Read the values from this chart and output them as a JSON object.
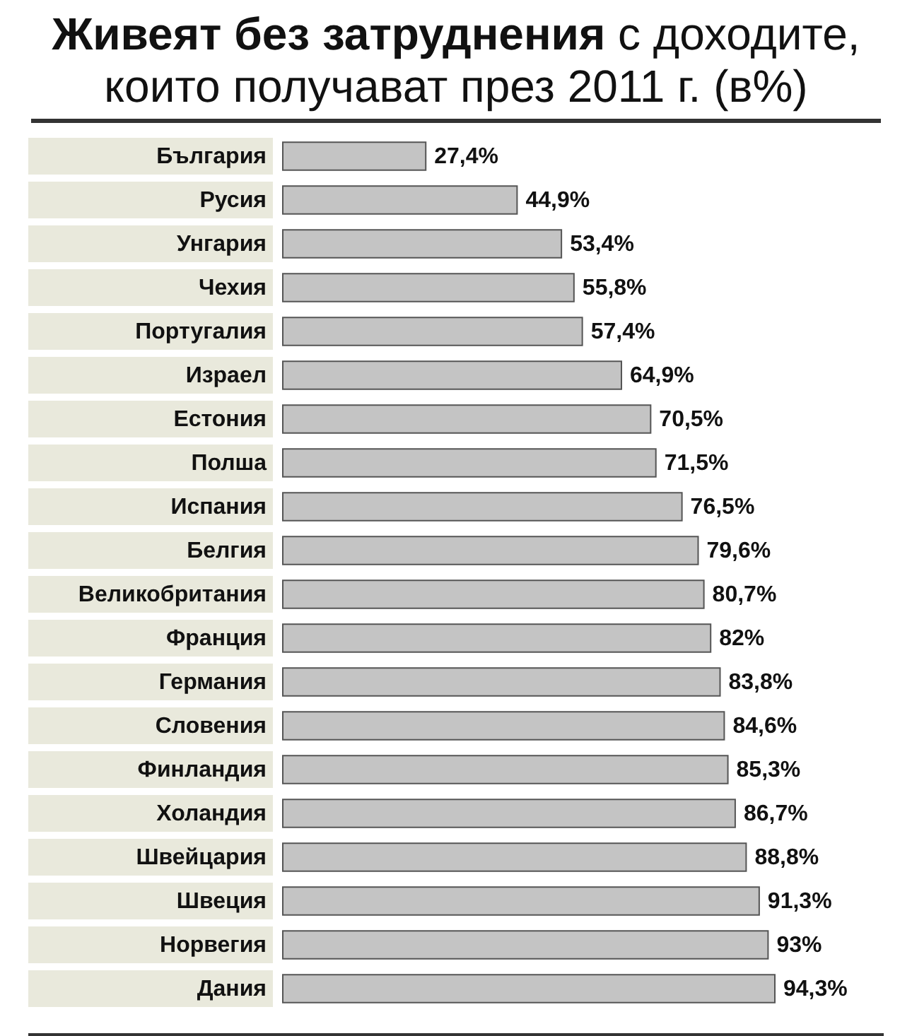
{
  "chart_data": {
    "type": "bar",
    "orientation": "horizontal",
    "title": "Живеят без затруднения с доходите, които получават през 2011 г. (в%)",
    "categories": [
      "България",
      "Русия",
      "Унгария",
      "Чехия",
      "Португалия",
      "Израел",
      "Естония",
      "Полша",
      "Испания",
      "Белгия",
      "Великобритания",
      "Франция",
      "Германия",
      "Словения",
      "Финландия",
      "Холандия",
      "Швейцария",
      "Швеция",
      "Норвегия",
      "Дания"
    ],
    "values": [
      27.4,
      44.9,
      53.4,
      55.8,
      57.4,
      64.9,
      70.5,
      71.5,
      76.5,
      79.6,
      80.7,
      82,
      83.8,
      84.6,
      85.3,
      86.7,
      88.8,
      91.3,
      93,
      94.3
    ],
    "value_labels": [
      "27,4%",
      "44,9%",
      "53,4%",
      "55,8%",
      "57,4%",
      "64,9%",
      "70,5%",
      "71,5%",
      "76,5%",
      "79,6%",
      "80,7%",
      "82%",
      "83,8%",
      "84,6%",
      "85,3%",
      "86,7%",
      "88,8%",
      "91,3%",
      "93%",
      "94,3%"
    ],
    "color": "#c4c4c4",
    "tick_labels": "y"
  }
}
